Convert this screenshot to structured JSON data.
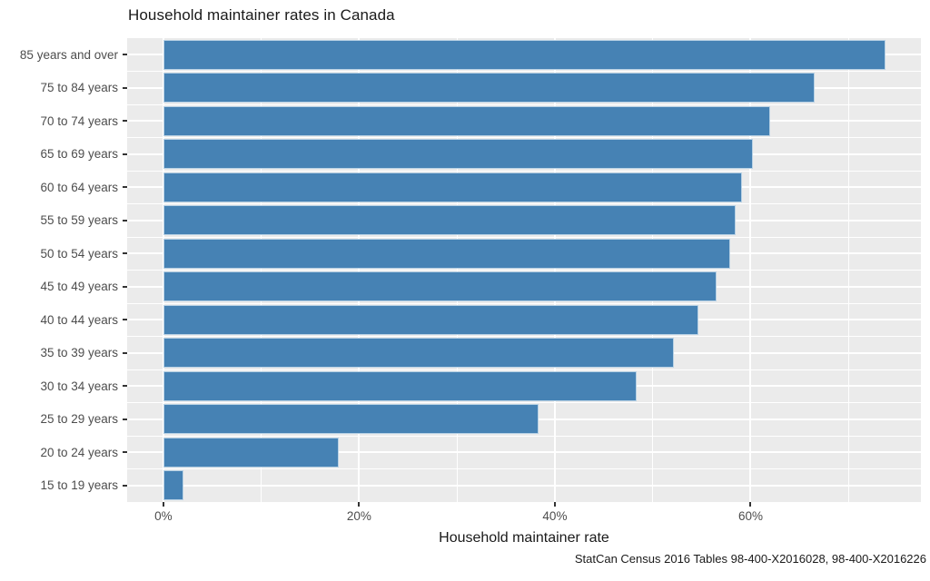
{
  "chart_data": {
    "type": "bar",
    "orientation": "horizontal",
    "title": "Household maintainer rates in Canada",
    "xlabel": "Household maintainer rate",
    "ylabel": "",
    "caption": "StatCan Census 2016 Tables 98-400-X2016028, 98-400-X2016226",
    "categories": [
      "85 years and over",
      "75 to 84 years",
      "70 to 74 years",
      "65 to 69 years",
      "60 to 64 years",
      "55 to 59 years",
      "50 to 54 years",
      "45 to 49 years",
      "40 to 44 years",
      "35 to 39 years",
      "30 to 34 years",
      "25 to 29 years",
      "20 to 24 years",
      "15 to 19 years"
    ],
    "values": [
      73.8,
      66.5,
      62.0,
      60.2,
      59.1,
      58.5,
      57.9,
      56.5,
      54.7,
      52.2,
      48.4,
      38.3,
      17.9,
      2.1
    ],
    "value_unit": "%",
    "x_ticks": [
      {
        "value": 0,
        "label": "0%"
      },
      {
        "value": 20,
        "label": "20%"
      },
      {
        "value": 40,
        "label": "40%"
      },
      {
        "value": 60,
        "label": "60%"
      }
    ],
    "x_minor_ticks": [
      10,
      30,
      50,
      70
    ],
    "xlim": [
      -3.7,
      77.4
    ],
    "grid": "on",
    "legend": "none",
    "colors": {
      "bar_fill": "#4682b4",
      "bar_border": "#b9d2e5",
      "panel_background": "#ebebeb",
      "gridline": "#ffffff",
      "tick_mark": "#333333",
      "tick_label": "#4d4d4d",
      "text": "#1a1a1a",
      "page_background": "#ffffff"
    }
  }
}
